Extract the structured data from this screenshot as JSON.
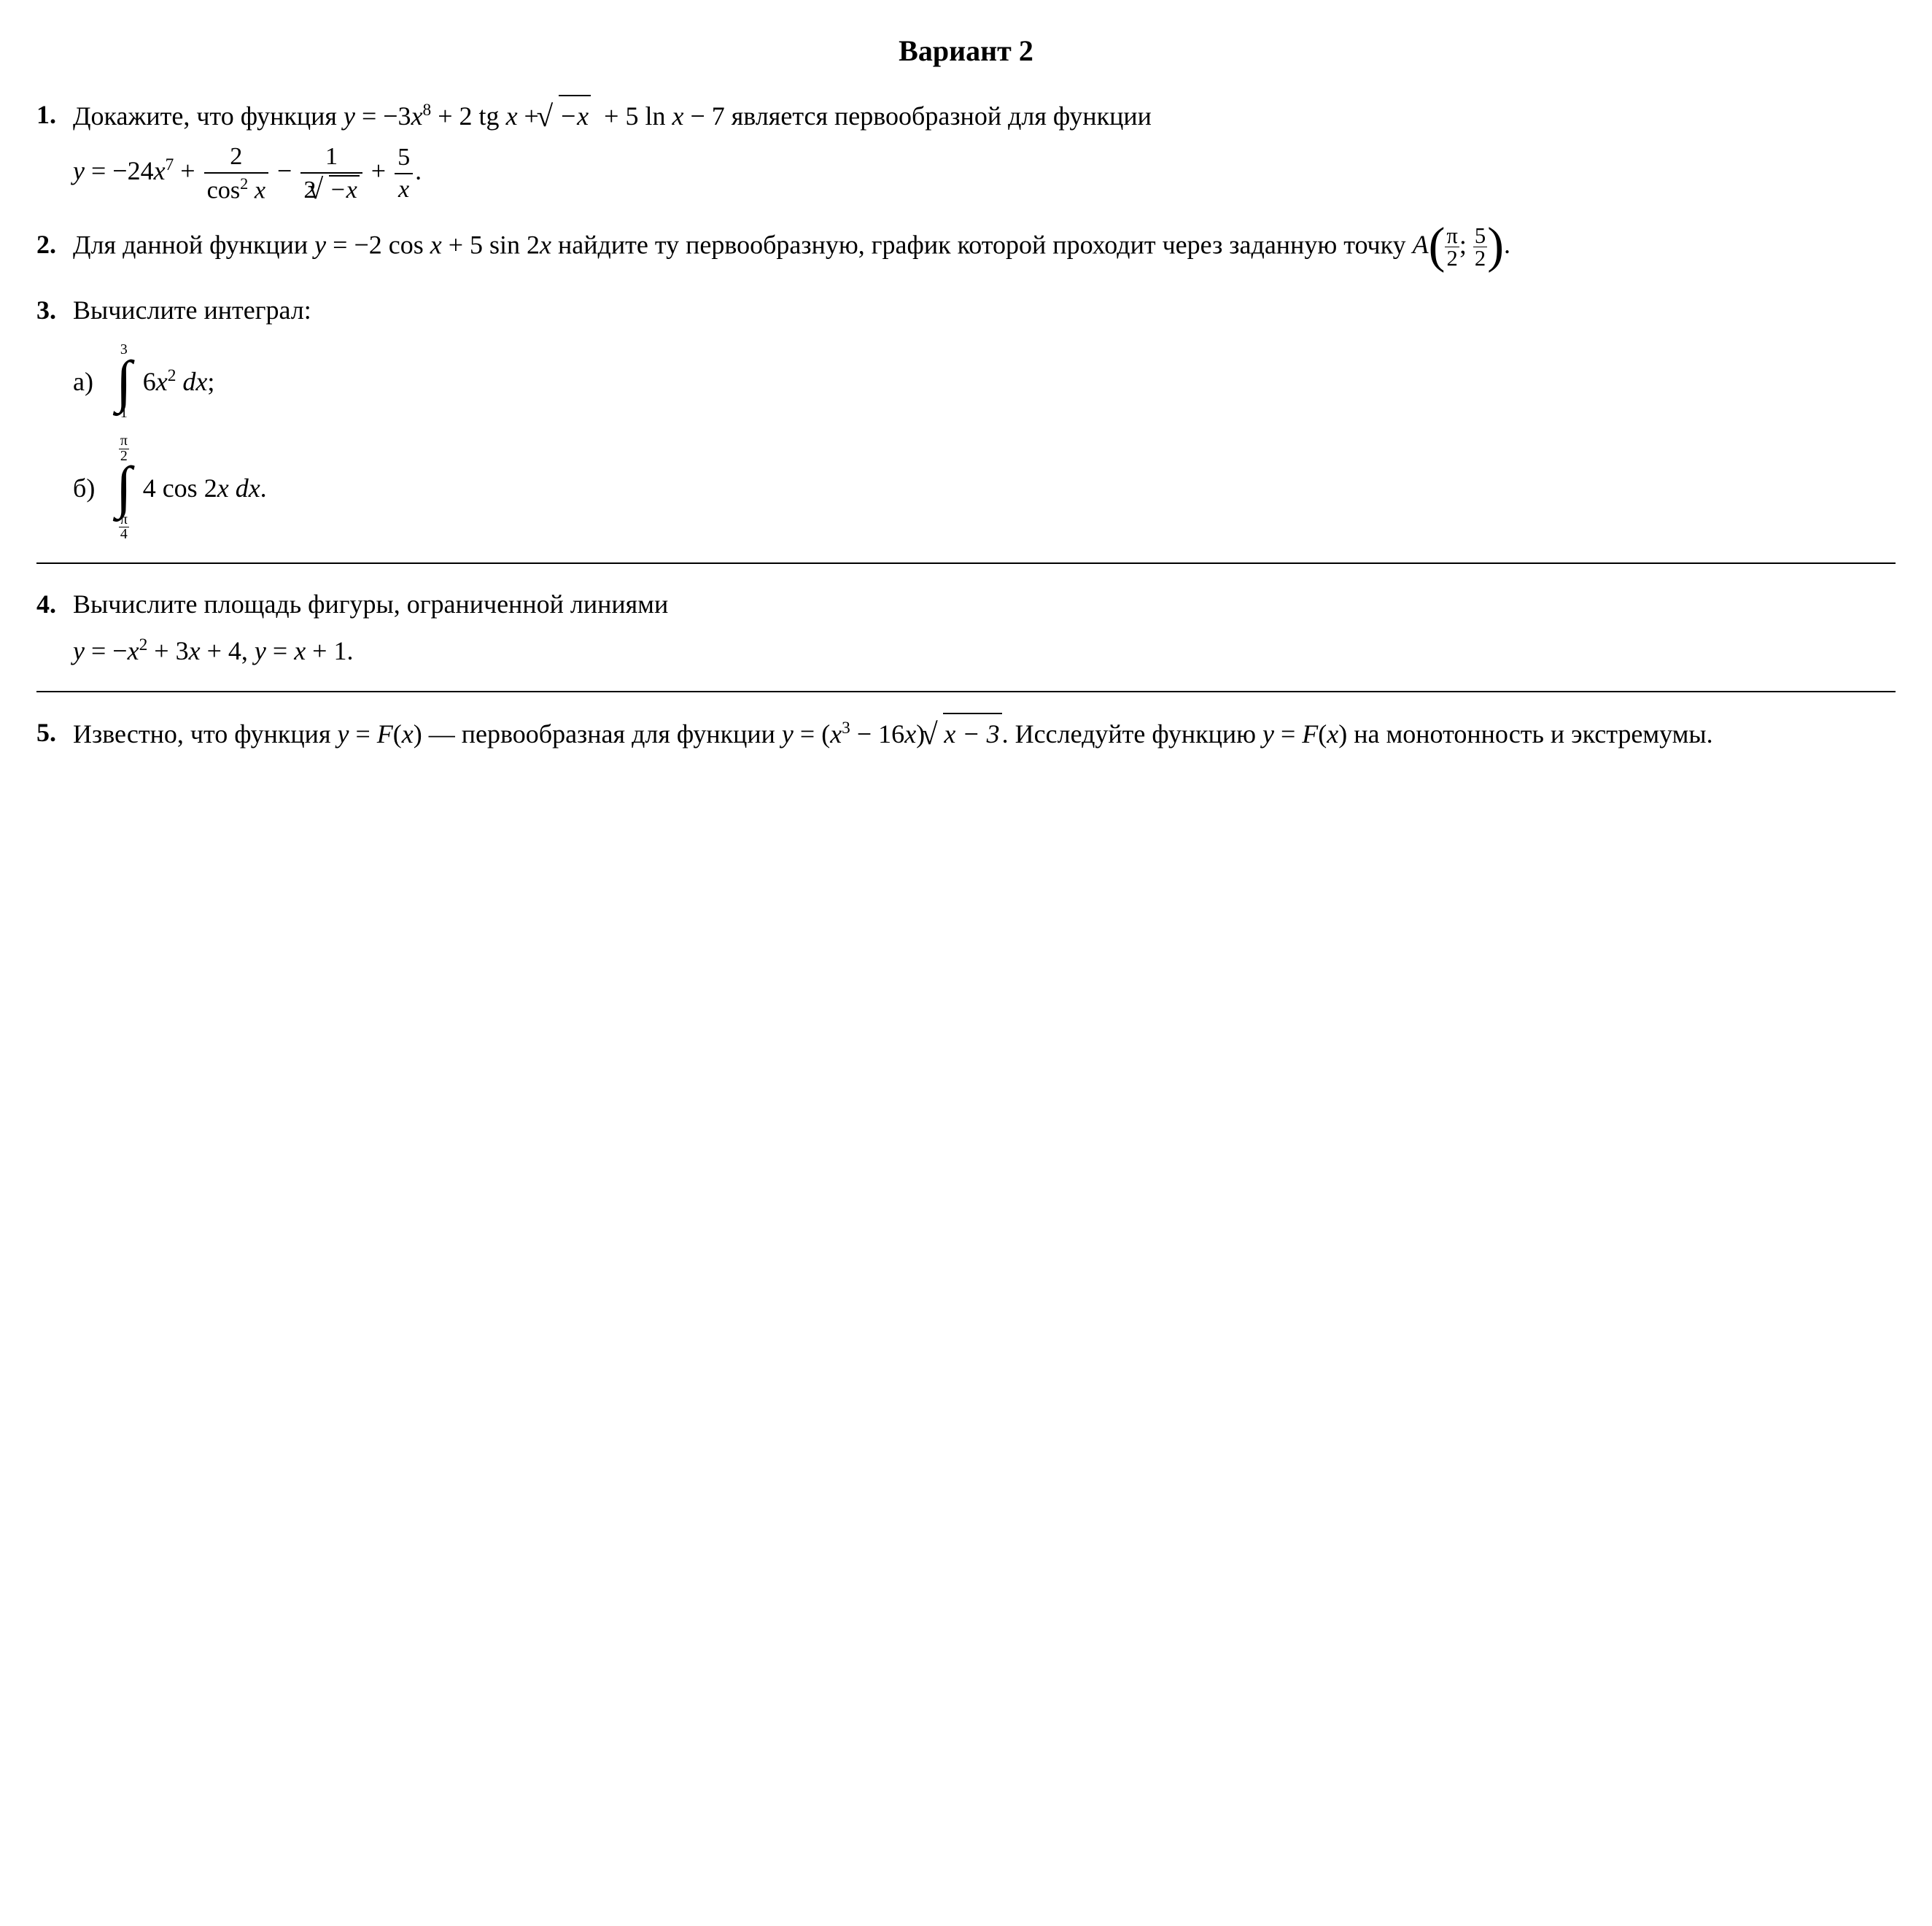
{
  "title": "Вариант 2",
  "problems": {
    "p1": {
      "num": "1.",
      "line1_a": "Докажите, что функция ",
      "line1_b": " является первообразной для функции",
      "eq1_y": "y",
      "eq1_eq": " = −3",
      "eq1_x": "x",
      "eq1_pow8": "8",
      "eq1_plus2tg": " + 2 tg ",
      "eq1_x2": "x",
      "eq1_plus": " + ",
      "eq1_negx": "−x",
      "eq1_plus5ln": " + 5 ln ",
      "eq1_x3": "x",
      "eq1_minus7": " − 7",
      "eq2_y": "y",
      "eq2_eq": " = −24",
      "eq2_x": "x",
      "eq2_pow7": "7",
      "eq2_plus": " + ",
      "eq2_f1num": "2",
      "eq2_f1den_a": "cos",
      "eq2_f1den_b": "2",
      "eq2_f1den_c": " x",
      "eq2_minus": " − ",
      "eq2_f2num": "1",
      "eq2_f2den_a": "2",
      "eq2_f2den_b": "−x",
      "eq2_plus2": " + ",
      "eq2_f3num": "5",
      "eq2_f3den": "x",
      "eq2_dot": "."
    },
    "p2": {
      "num": "2.",
      "line1_a": "Для данной функции ",
      "line1_b": " найдите ту перво­образную, график которой проходит через заданную точку ",
      "eq_y": "y",
      "eq_body": " = −2 cos ",
      "eq_x1": "x",
      "eq_plus": " + 5 sin 2",
      "eq_x2": "x",
      "A": "A",
      "f1n": "π",
      "f1d": "2",
      "sep": "; ",
      "f2n": "5",
      "f2d": "2",
      "dot": "."
    },
    "p3": {
      "num": "3.",
      "title": "Вычислите интеграл:",
      "a_label": "а)",
      "a_upper": "3",
      "a_lower": "1",
      "a_body1": "6",
      "a_body_x": "x",
      "a_body_pow": "2",
      "a_body2": " dx",
      "a_semi": ";",
      "b_label": "б)",
      "b_up_n": "π",
      "b_up_d": "2",
      "b_lo_n": "π",
      "b_lo_d": "4",
      "b_body1": "4 cos 2",
      "b_body_x": "x",
      "b_body2": " dx",
      "b_dot": "."
    },
    "p4": {
      "num": "4.",
      "line1": "Вычислите площадь фигуры, ограниченной линиями",
      "eq_y1": "y",
      "eq1": " = −",
      "eq_x1": "x",
      "eq_pow2": "2",
      "eq2": " + 3",
      "eq_x2": "x",
      "eq3": " + 4, ",
      "eq_y2": "y",
      "eq4": " = ",
      "eq_x3": "x",
      "eq5": " + 1."
    },
    "p5": {
      "num": "5.",
      "t1": "Известно, что функция ",
      "y1": "y",
      "t2": " = ",
      "F1": "F",
      "t3": "(",
      "x1": "x",
      "t4": ") — первообразная для функ­ции ",
      "y2": "y",
      "t5": " = (",
      "x2": "x",
      "pow3": "3",
      "t6": " − 16",
      "x3": "x",
      "t7": ")",
      "sq": "x − 3",
      "t8": ". Исследуйте функцию ",
      "y3": "y",
      "t9": " = ",
      "F2": "F",
      "t10": "(",
      "x4": "x",
      "t11": ") на монотонность и экстремумы."
    }
  }
}
